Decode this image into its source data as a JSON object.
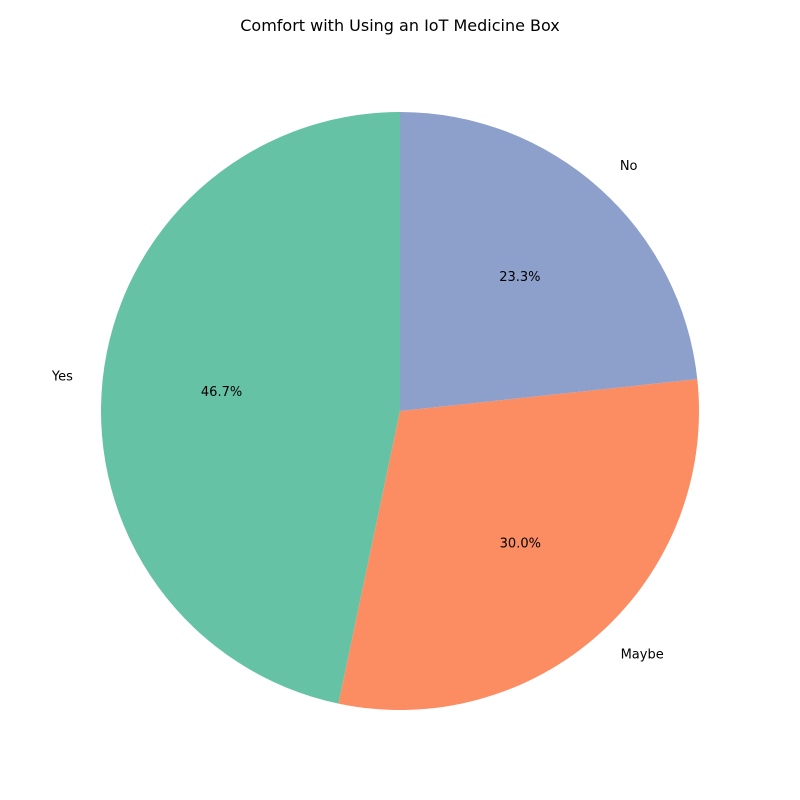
{
  "chart_data": {
    "type": "pie",
    "title": "Comfort with Using an IoT Medicine Box",
    "categories": [
      "Yes",
      "Maybe",
      "No"
    ],
    "values": [
      46.7,
      30.0,
      23.3
    ],
    "percent_labels": [
      "46.7%",
      "30.0%",
      "23.3%"
    ],
    "colors": [
      "#66c2a5",
      "#fc8d62",
      "#8da0cb"
    ],
    "start_angle_deg": 90,
    "direction": "counterclockwise",
    "legend": "none"
  }
}
